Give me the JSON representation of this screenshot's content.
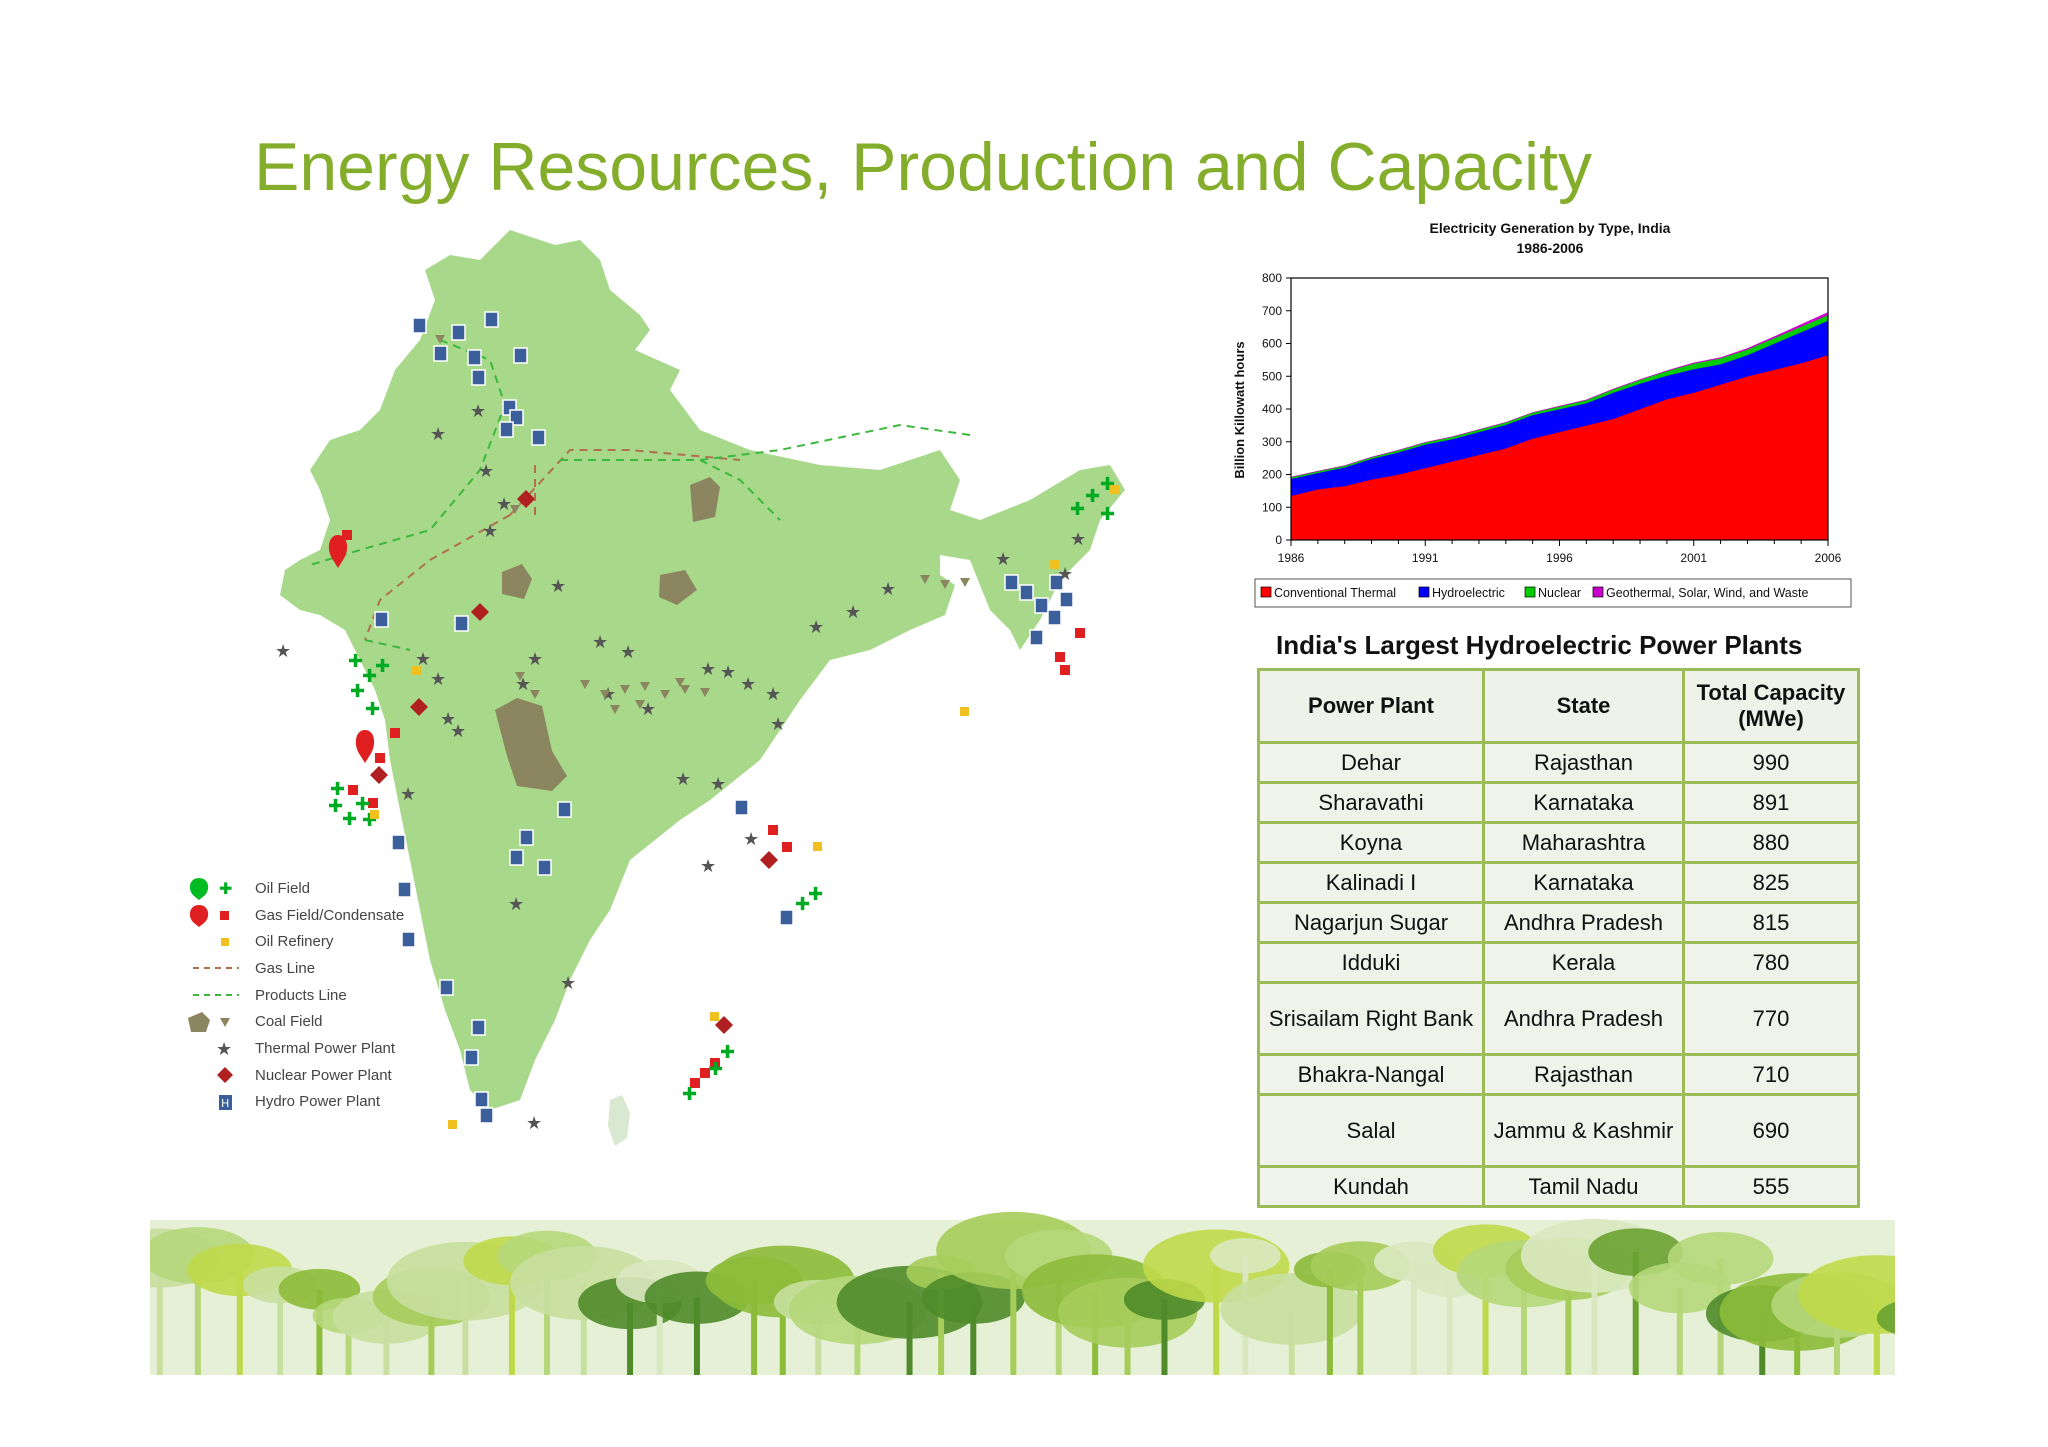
{
  "slide": {
    "title": "Energy Resources, Production and Capacity"
  },
  "legend": {
    "items": [
      {
        "label": "Oil Field",
        "icon": "oil-field-icon"
      },
      {
        "label": "Gas Field/Condensate",
        "icon": "gas-field-icon"
      },
      {
        "label": "Oil Refinery",
        "icon": "oil-refinery-icon"
      },
      {
        "label": "Gas Line",
        "icon": "gas-line-icon"
      },
      {
        "label": "Products Line",
        "icon": "products-line-icon"
      },
      {
        "label": "Coal Field",
        "icon": "coal-field-icon"
      },
      {
        "label": "Thermal Power Plant",
        "icon": "thermal-plant-icon"
      },
      {
        "label": "Nuclear Power Plant",
        "icon": "nuclear-plant-icon"
      },
      {
        "label": "Hydro Power Plant",
        "icon": "hydro-plant-icon"
      }
    ]
  },
  "colors": {
    "title": "#84ad2c",
    "map_land": "#a8d88a",
    "table_border": "#9bbb59",
    "thermal": "#ff0000",
    "hydro": "#0000ff",
    "nuclear": "#00cc00",
    "geothermal": "#cc00cc"
  },
  "chart_data": {
    "type": "area",
    "title": "Electricity Generation by Type, India",
    "subtitle": "1986-2006",
    "xlabel": "",
    "ylabel": "Billion Killowatt hours",
    "x": [
      1986,
      1987,
      1988,
      1989,
      1990,
      1991,
      1992,
      1993,
      1994,
      1995,
      1996,
      1997,
      1998,
      1999,
      2000,
      2001,
      2002,
      2003,
      2004,
      2005,
      2006
    ],
    "xticks": [
      1986,
      1991,
      1996,
      2001,
      2006
    ],
    "yticks": [
      0,
      100,
      200,
      300,
      400,
      500,
      600,
      700,
      800
    ],
    "ylim": [
      0,
      800
    ],
    "stacked": true,
    "legend_position": "bottom",
    "grid": false,
    "series": [
      {
        "name": "Conventional Thermal",
        "color": "#ff0000",
        "values": [
          135,
          155,
          165,
          185,
          200,
          220,
          240,
          260,
          280,
          310,
          330,
          350,
          370,
          400,
          430,
          450,
          475,
          500,
          520,
          540,
          565
        ]
      },
      {
        "name": "Hydroelectric",
        "color": "#0000ff",
        "values": [
          52,
          50,
          57,
          63,
          68,
          72,
          68,
          70,
          72,
          72,
          70,
          68,
          80,
          78,
          72,
          72,
          62,
          65,
          80,
          95,
          105
        ]
      },
      {
        "name": "Nuclear",
        "color": "#00cc00",
        "values": [
          5,
          5,
          5,
          5,
          6,
          6,
          7,
          7,
          7,
          7,
          8,
          9,
          10,
          11,
          14,
          17,
          18,
          17,
          17,
          17,
          17
        ]
      },
      {
        "name": "Geothermal, Solar, Wind, and Waste",
        "color": "#cc00cc",
        "values": [
          0,
          0,
          0,
          0,
          0,
          0,
          0,
          0,
          0,
          0,
          1,
          1,
          1,
          1,
          1,
          2,
          2,
          3,
          4,
          6,
          8
        ]
      }
    ]
  },
  "table": {
    "title": "India's Largest Hydroelectric Power Plants",
    "headers": [
      "Power Plant",
      "State",
      "Total Capacity (MWe)"
    ],
    "rows": [
      [
        "Dehar",
        "Rajasthan",
        "990"
      ],
      [
        "Sharavathi",
        "Karnataka",
        "891"
      ],
      [
        "Koyna",
        "Maharashtra",
        "880"
      ],
      [
        "Kalinadi I",
        "Karnataka",
        "825"
      ],
      [
        "Nagarjun Sugar",
        "Andhra Pradesh",
        "815"
      ],
      [
        "Idduki",
        "Kerala",
        "780"
      ],
      [
        "Srisailam Right Bank",
        "Andhra Pradesh",
        "770"
      ],
      [
        "Bhakra-Nangal",
        "Rajasthan",
        "710"
      ],
      [
        "Salal",
        "Jammu & Kashmir",
        "690"
      ],
      [
        "Kundah",
        "Tamil Nadu",
        "555"
      ]
    ]
  }
}
